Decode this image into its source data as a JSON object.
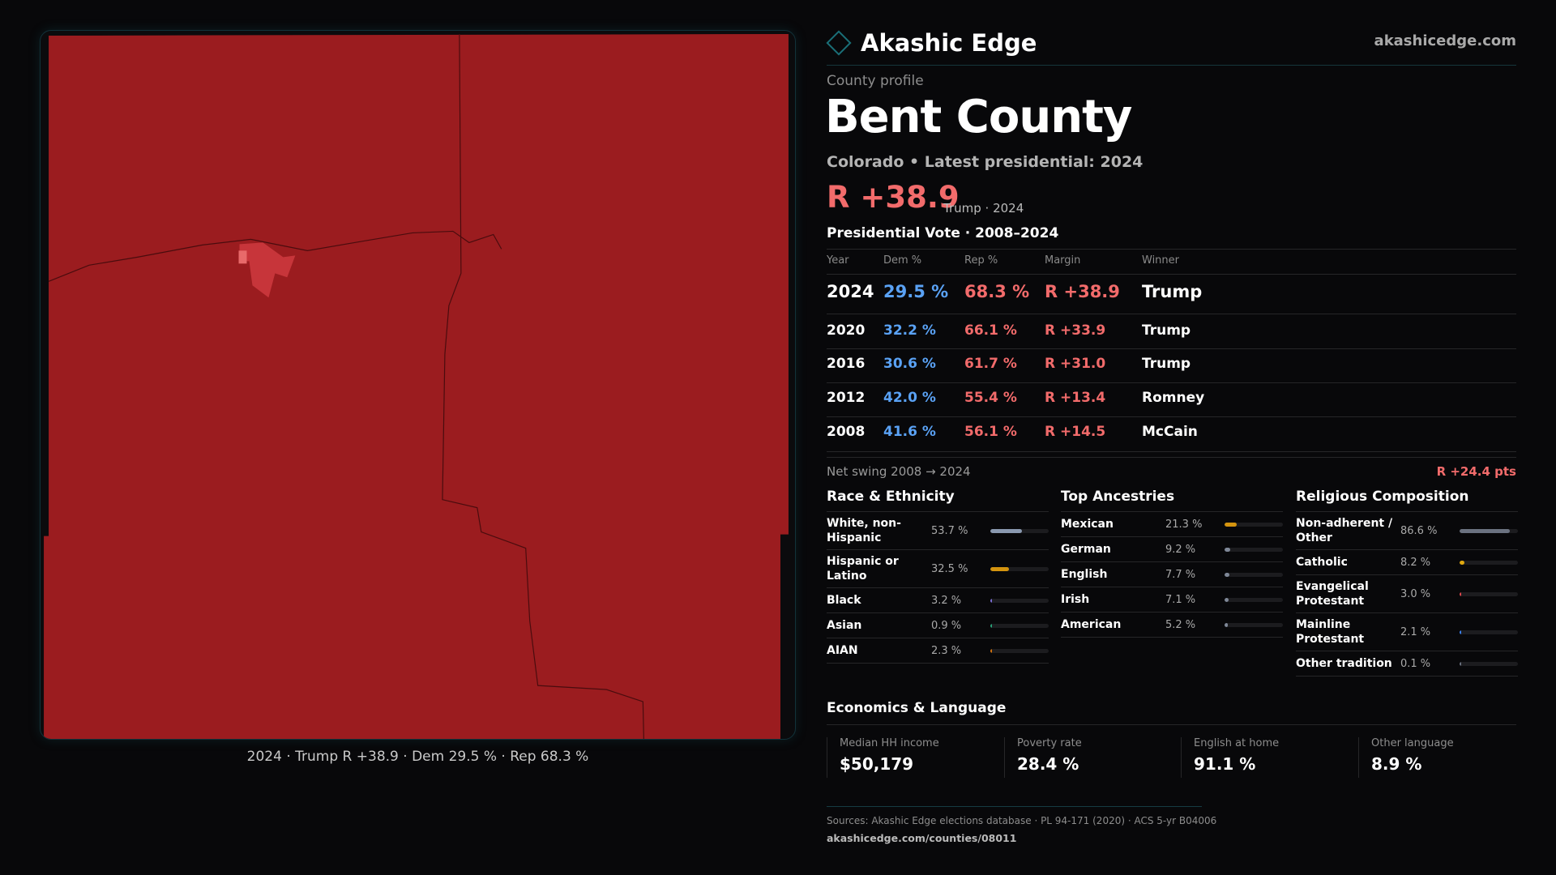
{
  "brand": {
    "name": "Akashic Edge",
    "site": "akashicedge.com",
    "accent": "#1a6f78"
  },
  "map": {
    "caption": "2024 · Trump R +38.9 · Dem 29.5 % · Rep 68.3 %",
    "fill": "#9b1c1f",
    "town_fill": "#c7353a"
  },
  "profile_label": "County profile",
  "title": "Bent County",
  "subtitle": "Colorado • Latest presidential: 2024",
  "headline": {
    "margin": "R +38.9",
    "sub": "Trump · 2024"
  },
  "pres": {
    "heading": "Presidential Vote · 2008–2024",
    "columns": [
      "Year",
      "Dem %",
      "Rep %",
      "Margin",
      "Winner"
    ],
    "rows": [
      [
        "2024",
        "29.5 %",
        "68.3 %",
        "R +38.9",
        "Trump"
      ],
      [
        "2020",
        "32.2 %",
        "66.1 %",
        "R +33.9",
        "Trump"
      ],
      [
        "2016",
        "30.6 %",
        "61.7 %",
        "R +31.0",
        "Trump"
      ],
      [
        "2012",
        "42.0 %",
        "55.4 %",
        "R +13.4",
        "Romney"
      ],
      [
        "2008",
        "41.6 %",
        "56.1 %",
        "R +14.5",
        "McCain"
      ]
    ]
  },
  "swing": {
    "label": "Net swing 2008 → 2024",
    "value": "R +24.4 pts"
  },
  "groups": [
    {
      "title": "Race & Ethnicity",
      "items": [
        {
          "label": "White, non-Hispanic",
          "pct": "53.7 %",
          "value": 53.7,
          "color": "#8a99b0"
        },
        {
          "label": "Hispanic or Latino",
          "pct": "32.5 %",
          "value": 32.5,
          "color": "#d4940f"
        },
        {
          "label": "Black",
          "pct": "3.2 %",
          "value": 3.2,
          "color": "#7c6fd6"
        },
        {
          "label": "Asian",
          "pct": "0.9 %",
          "value": 0.9,
          "color": "#2aa37a"
        },
        {
          "label": "AIAN",
          "pct": "2.3 %",
          "value": 2.3,
          "color": "#d4730f"
        }
      ]
    },
    {
      "title": "Top Ancestries",
      "items": [
        {
          "label": "Mexican",
          "pct": "21.3 %",
          "value": 21.3,
          "color": "#d4940f"
        },
        {
          "label": "German",
          "pct": "9.2 %",
          "value": 9.2,
          "color": "#7f8898"
        },
        {
          "label": "English",
          "pct": "7.7 %",
          "value": 7.7,
          "color": "#7f8898"
        },
        {
          "label": "Irish",
          "pct": "7.1 %",
          "value": 7.1,
          "color": "#7f8898"
        },
        {
          "label": "American",
          "pct": "5.2 %",
          "value": 5.2,
          "color": "#7f8898"
        }
      ]
    },
    {
      "title": "Religious Composition",
      "items": [
        {
          "label": "Non-adherent / Other",
          "pct": "86.6 %",
          "value": 86.6,
          "color": "#6b7280"
        },
        {
          "label": "Catholic",
          "pct": "8.2 %",
          "value": 8.2,
          "color": "#e0a80f"
        },
        {
          "label": "Evangelical Protestant",
          "pct": "3.0 %",
          "value": 3.0,
          "color": "#e0474c"
        },
        {
          "label": "Mainline Protestant",
          "pct": "2.1 %",
          "value": 2.1,
          "color": "#3b82f6"
        },
        {
          "label": "Other tradition",
          "pct": "0.1 %",
          "value": 0.1,
          "color": "#6b7280"
        }
      ]
    }
  ],
  "econ": {
    "heading": "Economics & Language",
    "stats": [
      {
        "label": "Median HH income",
        "value": "$50,179"
      },
      {
        "label": "Poverty rate",
        "value": "28.4 %"
      },
      {
        "label": "English at home",
        "value": "91.1 %"
      },
      {
        "label": "Other language",
        "value": "8.9 %"
      }
    ]
  },
  "footer": {
    "sources": "Sources: Akashic Edge elections database · PL 94-171 (2020) · ACS 5-yr B04006",
    "url": "akashicedge.com/counties/08011"
  }
}
